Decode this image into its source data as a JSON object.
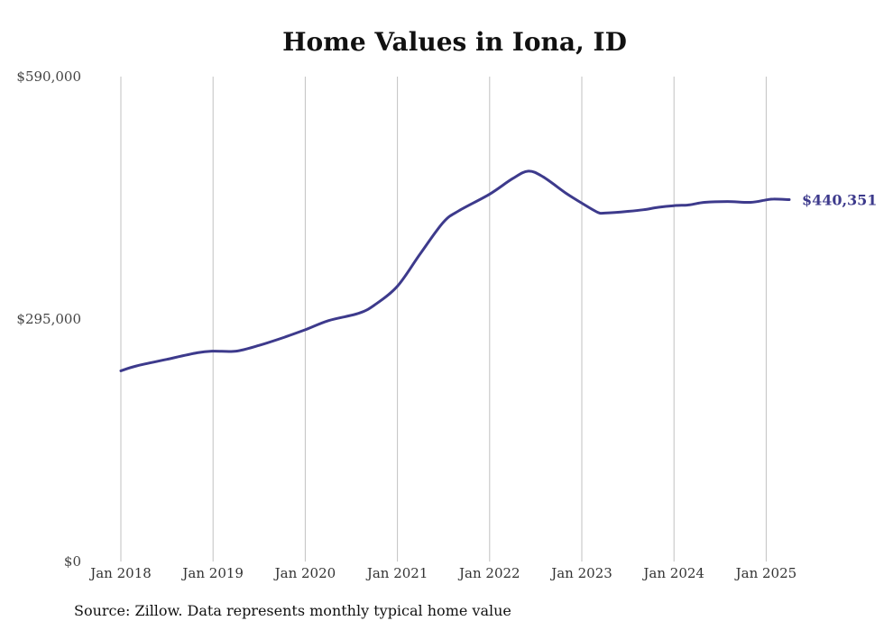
{
  "chart_data": {
    "type": "line",
    "title": "Home Values in Iona, ID",
    "xlabel": "",
    "ylabel": "",
    "ylim": [
      0,
      590000
    ],
    "y_ticks": [
      "$590,000",
      "$295,000",
      "$0"
    ],
    "y_tick_values": [
      590000,
      295000,
      0
    ],
    "x_ticks": [
      "Jan 2018",
      "Jan 2019",
      "Jan 2020",
      "Jan 2021",
      "Jan 2022",
      "Jan 2023",
      "Jan 2024",
      "Jan 2025"
    ],
    "x_tick_values": [
      2018,
      2019,
      2020,
      2021,
      2022,
      2023,
      2024,
      2025
    ],
    "grid": "vertical",
    "line_color": "#3d3a8c",
    "series": [
      {
        "x": [
          2018.0,
          2018.17,
          2018.5,
          2018.83,
          2019.0,
          2019.25,
          2019.5,
          2019.75,
          2020.0,
          2020.25,
          2020.58,
          2020.75,
          2021.0,
          2021.25,
          2021.5,
          2021.67,
          2022.0,
          2022.25,
          2022.42,
          2022.58,
          2022.83,
          2023.0,
          2023.17,
          2023.25,
          2023.5,
          2023.67,
          2023.83,
          2024.0,
          2024.17,
          2024.33,
          2024.58,
          2024.83,
          2025.0,
          2025.08,
          2025.25
        ],
        "values": [
          232000,
          238000,
          246000,
          254000,
          256000,
          256000,
          263000,
          272000,
          282000,
          293000,
          302000,
          312000,
          335000,
          375000,
          413000,
          427000,
          447000,
          466000,
          475000,
          468000,
          448000,
          436000,
          425000,
          424000,
          426000,
          428000,
          431000,
          433000,
          434000,
          437000,
          438000,
          437000,
          440000,
          441000,
          440351
        ]
      }
    ],
    "end_label": "$440,351",
    "note": "Source: Zillow. Data represents monthly typical home value"
  }
}
